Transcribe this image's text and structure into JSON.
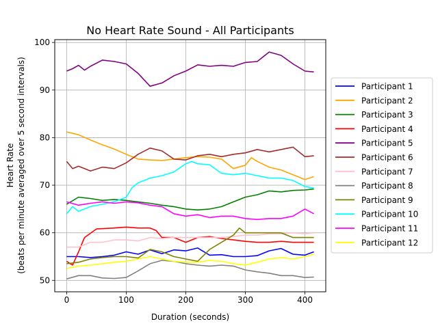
{
  "chart_data": {
    "type": "line",
    "title": "No Heart Rate Sound - All Participants",
    "xlabel": "Duration (seconds)",
    "ylabel_line1": "Heart Rate",
    "ylabel_line2": "(beats per minute averaged over 5 second intervals)",
    "xlim": [
      -20,
      435
    ],
    "ylim": [
      47.6,
      100.6
    ],
    "xticks": [
      0,
      100,
      200,
      300,
      400
    ],
    "yticks": [
      50,
      60,
      70,
      80,
      90,
      100
    ],
    "grid": true,
    "legend_position": "center-right-outside",
    "series": [
      {
        "name": "Participant 1",
        "color": "#0000ff",
        "points": [
          [
            0,
            55
          ],
          [
            20,
            55
          ],
          [
            40,
            54.8
          ],
          [
            60,
            55
          ],
          [
            80,
            55.3
          ],
          [
            100,
            56
          ],
          [
            120,
            55.5
          ],
          [
            140,
            56.4
          ],
          [
            160,
            55.6
          ],
          [
            180,
            56.4
          ],
          [
            200,
            56.2
          ],
          [
            220,
            56.8
          ],
          [
            240,
            55.3
          ],
          [
            260,
            55.4
          ],
          [
            280,
            55
          ],
          [
            300,
            55
          ],
          [
            320,
            55.2
          ],
          [
            340,
            56.2
          ],
          [
            360,
            56.7
          ],
          [
            380,
            55.5
          ],
          [
            400,
            55.3
          ],
          [
            415,
            56
          ]
        ]
      },
      {
        "name": "Participant 2",
        "color": "#ffa500",
        "points": [
          [
            0,
            81.2
          ],
          [
            20,
            80.6
          ],
          [
            40,
            79.5
          ],
          [
            60,
            78.5
          ],
          [
            80,
            77.6
          ],
          [
            100,
            76.5
          ],
          [
            120,
            75.5
          ],
          [
            140,
            75.3
          ],
          [
            160,
            75.2
          ],
          [
            180,
            75.5
          ],
          [
            200,
            75.8
          ],
          [
            220,
            76
          ],
          [
            240,
            75.9
          ],
          [
            260,
            75.5
          ],
          [
            280,
            73.5
          ],
          [
            300,
            74.2
          ],
          [
            310,
            75.8
          ],
          [
            320,
            75
          ],
          [
            340,
            73.8
          ],
          [
            360,
            73.2
          ],
          [
            380,
            72.2
          ],
          [
            400,
            71.2
          ],
          [
            415,
            71.8
          ]
        ]
      },
      {
        "name": "Participant 3",
        "color": "#008000",
        "points": [
          [
            0,
            66
          ],
          [
            20,
            67.5
          ],
          [
            40,
            67.2
          ],
          [
            60,
            66.8
          ],
          [
            80,
            67
          ],
          [
            100,
            66.8
          ],
          [
            120,
            66.5
          ],
          [
            140,
            66.2
          ],
          [
            160,
            65.8
          ],
          [
            180,
            65.5
          ],
          [
            200,
            65
          ],
          [
            220,
            64.8
          ],
          [
            240,
            65
          ],
          [
            260,
            65.5
          ],
          [
            280,
            66.5
          ],
          [
            300,
            67.5
          ],
          [
            320,
            68
          ],
          [
            340,
            68.8
          ],
          [
            360,
            68.6
          ],
          [
            380,
            68.9
          ],
          [
            400,
            69
          ],
          [
            415,
            69.2
          ]
        ]
      },
      {
        "name": "Participant 4",
        "color": "#ff0000",
        "points": [
          [
            0,
            54
          ],
          [
            10,
            53.2
          ],
          [
            20,
            56
          ],
          [
            30,
            59
          ],
          [
            50,
            60.8
          ],
          [
            80,
            61
          ],
          [
            100,
            61.2
          ],
          [
            120,
            61
          ],
          [
            140,
            61
          ],
          [
            150,
            60.5
          ],
          [
            160,
            59
          ],
          [
            180,
            59
          ],
          [
            200,
            58
          ],
          [
            220,
            59
          ],
          [
            240,
            59.2
          ],
          [
            260,
            58.8
          ],
          [
            280,
            58.5
          ],
          [
            300,
            58.2
          ],
          [
            320,
            58
          ],
          [
            340,
            58
          ],
          [
            360,
            58.2
          ],
          [
            380,
            58
          ],
          [
            400,
            58
          ],
          [
            415,
            58
          ]
        ]
      },
      {
        "name": "Participant 5",
        "color": "#800080",
        "points": [
          [
            0,
            94
          ],
          [
            10,
            94.5
          ],
          [
            20,
            95.2
          ],
          [
            30,
            94.2
          ],
          [
            40,
            95
          ],
          [
            60,
            96.3
          ],
          [
            80,
            96
          ],
          [
            100,
            95.5
          ],
          [
            120,
            93.5
          ],
          [
            140,
            90.8
          ],
          [
            160,
            91.5
          ],
          [
            180,
            93
          ],
          [
            200,
            94
          ],
          [
            220,
            95.3
          ],
          [
            240,
            95
          ],
          [
            260,
            95.2
          ],
          [
            280,
            95
          ],
          [
            300,
            95.8
          ],
          [
            320,
            96
          ],
          [
            340,
            98
          ],
          [
            360,
            97.3
          ],
          [
            380,
            95.5
          ],
          [
            400,
            94
          ],
          [
            415,
            93.8
          ]
        ]
      },
      {
        "name": "Participant 6",
        "color": "#a52a2a",
        "points": [
          [
            0,
            75
          ],
          [
            10,
            73.5
          ],
          [
            20,
            74
          ],
          [
            40,
            73
          ],
          [
            60,
            73.8
          ],
          [
            80,
            73.5
          ],
          [
            100,
            74.7
          ],
          [
            120,
            76.5
          ],
          [
            140,
            77.8
          ],
          [
            160,
            77.2
          ],
          [
            180,
            75.5
          ],
          [
            200,
            75.3
          ],
          [
            220,
            76.2
          ],
          [
            240,
            76.5
          ],
          [
            260,
            76
          ],
          [
            280,
            76.5
          ],
          [
            300,
            76.8
          ],
          [
            320,
            77.5
          ],
          [
            340,
            77
          ],
          [
            360,
            77.5
          ],
          [
            380,
            78
          ],
          [
            400,
            76
          ],
          [
            415,
            76.2
          ]
        ]
      },
      {
        "name": "Participant 7",
        "color": "#ffc0cb",
        "points": [
          [
            0,
            57
          ],
          [
            20,
            57
          ],
          [
            40,
            58
          ],
          [
            60,
            58
          ],
          [
            80,
            58.5
          ],
          [
            100,
            58.5
          ],
          [
            120,
            58.3
          ],
          [
            140,
            59
          ],
          [
            160,
            58.8
          ],
          [
            180,
            59
          ],
          [
            200,
            59
          ],
          [
            220,
            59
          ],
          [
            240,
            59
          ],
          [
            260,
            59
          ],
          [
            280,
            59.2
          ],
          [
            300,
            59.5
          ],
          [
            320,
            59.5
          ],
          [
            340,
            59.8
          ],
          [
            360,
            59.8
          ],
          [
            380,
            60
          ],
          [
            400,
            59.8
          ],
          [
            415,
            60
          ]
        ]
      },
      {
        "name": "Participant 8",
        "color": "#808080",
        "points": [
          [
            0,
            50.3
          ],
          [
            20,
            51
          ],
          [
            40,
            51
          ],
          [
            60,
            50.5
          ],
          [
            80,
            50.4
          ],
          [
            100,
            50.6
          ],
          [
            120,
            52
          ],
          [
            140,
            53.5
          ],
          [
            160,
            54.2
          ],
          [
            180,
            54
          ],
          [
            200,
            53.5
          ],
          [
            220,
            53.2
          ],
          [
            240,
            53
          ],
          [
            260,
            53.2
          ],
          [
            280,
            53
          ],
          [
            300,
            52.2
          ],
          [
            320,
            51.8
          ],
          [
            340,
            51.5
          ],
          [
            360,
            51
          ],
          [
            380,
            51
          ],
          [
            400,
            50.6
          ],
          [
            415,
            50.7
          ]
        ]
      },
      {
        "name": "Participant 9",
        "color": "#808000",
        "points": [
          [
            0,
            53.5
          ],
          [
            20,
            53.8
          ],
          [
            40,
            54.5
          ],
          [
            60,
            54.8
          ],
          [
            80,
            55
          ],
          [
            100,
            55
          ],
          [
            120,
            54.7
          ],
          [
            140,
            56.5
          ],
          [
            160,
            56
          ],
          [
            180,
            55
          ],
          [
            200,
            54.5
          ],
          [
            220,
            54
          ],
          [
            240,
            56.5
          ],
          [
            260,
            58
          ],
          [
            280,
            59.5
          ],
          [
            290,
            61
          ],
          [
            300,
            60
          ],
          [
            320,
            60
          ],
          [
            340,
            60
          ],
          [
            360,
            60
          ],
          [
            380,
            59
          ],
          [
            400,
            59
          ],
          [
            415,
            59
          ]
        ]
      },
      {
        "name": "Participant 10",
        "color": "#00ffff",
        "points": [
          [
            0,
            64
          ],
          [
            10,
            65.5
          ],
          [
            20,
            64.5
          ],
          [
            40,
            65.5
          ],
          [
            60,
            66
          ],
          [
            80,
            66.5
          ],
          [
            100,
            67.5
          ],
          [
            110,
            69.5
          ],
          [
            120,
            70.5
          ],
          [
            140,
            71.5
          ],
          [
            160,
            72
          ],
          [
            180,
            72.8
          ],
          [
            200,
            74.5
          ],
          [
            210,
            75
          ],
          [
            220,
            74.5
          ],
          [
            240,
            74.3
          ],
          [
            260,
            72.5
          ],
          [
            280,
            72.2
          ],
          [
            300,
            72.5
          ],
          [
            320,
            72
          ],
          [
            340,
            71.5
          ],
          [
            360,
            71.5
          ],
          [
            380,
            71
          ],
          [
            400,
            69.7
          ],
          [
            415,
            69.4
          ]
        ]
      },
      {
        "name": "Participant 11",
        "color": "#ff00ff",
        "points": [
          [
            0,
            66.5
          ],
          [
            20,
            65.8
          ],
          [
            40,
            66.2
          ],
          [
            60,
            66.5
          ],
          [
            80,
            66.2
          ],
          [
            100,
            66.5
          ],
          [
            120,
            66.3
          ],
          [
            140,
            65.8
          ],
          [
            160,
            65.5
          ],
          [
            180,
            64
          ],
          [
            200,
            63.5
          ],
          [
            220,
            63.8
          ],
          [
            240,
            63.2
          ],
          [
            260,
            63.5
          ],
          [
            280,
            63.5
          ],
          [
            300,
            63
          ],
          [
            320,
            62.8
          ],
          [
            340,
            63
          ],
          [
            360,
            63
          ],
          [
            380,
            63.5
          ],
          [
            400,
            65
          ],
          [
            415,
            64
          ]
        ]
      },
      {
        "name": "Participant 12",
        "color": "#ffff00",
        "points": [
          [
            0,
            52.5
          ],
          [
            20,
            53
          ],
          [
            40,
            53.2
          ],
          [
            60,
            53.5
          ],
          [
            80,
            53.8
          ],
          [
            100,
            54
          ],
          [
            120,
            54.5
          ],
          [
            140,
            55
          ],
          [
            160,
            54.5
          ],
          [
            180,
            54
          ],
          [
            200,
            53.8
          ],
          [
            220,
            53.8
          ],
          [
            240,
            54.2
          ],
          [
            260,
            54
          ],
          [
            280,
            53.5
          ],
          [
            300,
            53.2
          ],
          [
            320,
            53.8
          ],
          [
            340,
            54.5
          ],
          [
            360,
            54.8
          ],
          [
            380,
            54.5
          ],
          [
            400,
            55
          ],
          [
            415,
            55.5
          ]
        ]
      }
    ]
  }
}
